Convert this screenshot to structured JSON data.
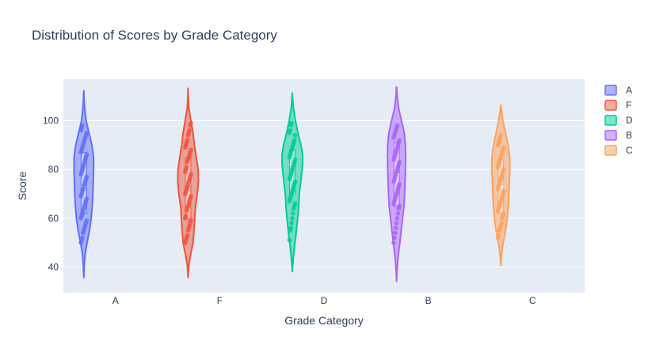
{
  "chart_data": {
    "type": "violin",
    "title": "Distribution of Scores by Grade Category",
    "xlabel": "Grade Category",
    "ylabel": "Score",
    "categories": [
      "A",
      "F",
      "D",
      "B",
      "C"
    ],
    "ylim": [
      29.5,
      117
    ],
    "yticks": [
      40,
      60,
      80,
      100
    ],
    "grid": true,
    "legend_position": "right",
    "series": [
      {
        "name": "A",
        "color": "#636efa",
        "kde": [
          [
            35.5,
            0
          ],
          [
            40,
            0.04
          ],
          [
            45,
            0.12
          ],
          [
            50,
            0.32
          ],
          [
            55,
            0.55
          ],
          [
            60,
            0.72
          ],
          [
            65,
            0.82
          ],
          [
            70,
            0.88
          ],
          [
            75,
            0.92
          ],
          [
            80,
            0.95
          ],
          [
            85,
            0.95
          ],
          [
            90,
            0.78
          ],
          [
            95,
            0.5
          ],
          [
            100,
            0.22
          ],
          [
            105,
            0.09
          ],
          [
            108,
            0.04
          ],
          [
            112.5,
            0
          ]
        ],
        "box": {
          "q1": 62,
          "median": 73,
          "q3": 87
        },
        "points": [
          50,
          51,
          52,
          54,
          55,
          56,
          57,
          58,
          59,
          60,
          61,
          62,
          63,
          64,
          65,
          66,
          67,
          68,
          69,
          70,
          71,
          72,
          73,
          74,
          75,
          76,
          77,
          78,
          79,
          80,
          81,
          82,
          83,
          84,
          85,
          86,
          87,
          88,
          89,
          90,
          91,
          92,
          93,
          94,
          95,
          96,
          97,
          98
        ]
      },
      {
        "name": "F",
        "color": "#ef553b",
        "kde": [
          [
            35.5,
            0
          ],
          [
            38,
            0.03
          ],
          [
            41,
            0.08
          ],
          [
            45,
            0.25
          ],
          [
            50,
            0.48
          ],
          [
            55,
            0.58
          ],
          [
            60,
            0.65
          ],
          [
            65,
            0.72
          ],
          [
            70,
            0.9
          ],
          [
            75,
            1.0
          ],
          [
            80,
            0.98
          ],
          [
            85,
            0.8
          ],
          [
            90,
            0.62
          ],
          [
            95,
            0.48
          ],
          [
            100,
            0.28
          ],
          [
            105,
            0.08
          ],
          [
            110,
            0.02
          ],
          [
            113.5,
            0
          ]
        ],
        "box": {
          "q1": 60,
          "median": 74,
          "q3": 85
        },
        "points": [
          50,
          51,
          52,
          53,
          55,
          56,
          57,
          58,
          59,
          60,
          61,
          63,
          64,
          65,
          66,
          67,
          68,
          69,
          70,
          71,
          72,
          73,
          74,
          75,
          76,
          77,
          78,
          79,
          80,
          81,
          83,
          84,
          85,
          86,
          87,
          88,
          89,
          90,
          91,
          92,
          94,
          95,
          96,
          98,
          99
        ]
      },
      {
        "name": "D",
        "color": "#00cc96",
        "kde": [
          [
            38,
            0
          ],
          [
            40,
            0.03
          ],
          [
            44,
            0.1
          ],
          [
            48,
            0.2
          ],
          [
            52,
            0.32
          ],
          [
            56,
            0.42
          ],
          [
            60,
            0.52
          ],
          [
            64,
            0.6
          ],
          [
            70,
            0.68
          ],
          [
            76,
            0.85
          ],
          [
            82,
            1.0
          ],
          [
            86,
            1.0
          ],
          [
            90,
            0.85
          ],
          [
            94,
            0.6
          ],
          [
            100,
            0.3
          ],
          [
            106,
            0.08
          ],
          [
            111.5,
            0
          ]
        ],
        "box": {
          "q1": 70,
          "median": 82,
          "q3": 88
        },
        "points": [
          51,
          55,
          56,
          58,
          60,
          62,
          64,
          65,
          66,
          67,
          68,
          69,
          70,
          71,
          72,
          73,
          74,
          75,
          76,
          77,
          78,
          79,
          80,
          81,
          82,
          83,
          84,
          85,
          86,
          87,
          88,
          89,
          90,
          91,
          92,
          94,
          95,
          96,
          98,
          99
        ]
      },
      {
        "name": "B",
        "color": "#ab63fa",
        "kde": [
          [
            34,
            0
          ],
          [
            38,
            0.04
          ],
          [
            42,
            0.1
          ],
          [
            46,
            0.2
          ],
          [
            50,
            0.32
          ],
          [
            55,
            0.45
          ],
          [
            60,
            0.58
          ],
          [
            65,
            0.72
          ],
          [
            70,
            0.78
          ],
          [
            75,
            0.82
          ],
          [
            80,
            0.86
          ],
          [
            85,
            0.88
          ],
          [
            90,
            0.86
          ],
          [
            95,
            0.75
          ],
          [
            100,
            0.48
          ],
          [
            105,
            0.2
          ],
          [
            110,
            0.06
          ],
          [
            114,
            0
          ]
        ],
        "box": {
          "q1": 65,
          "median": 78,
          "q3": 91
        },
        "points": [
          50,
          52,
          54,
          56,
          58,
          60,
          62,
          64,
          65,
          66,
          67,
          68,
          69,
          70,
          71,
          72,
          73,
          74,
          75,
          76,
          77,
          78,
          79,
          80,
          81,
          82,
          83,
          84,
          85,
          86,
          87,
          88,
          89,
          90,
          91,
          92,
          93,
          94,
          95,
          96,
          97,
          98
        ]
      },
      {
        "name": "C",
        "color": "#ffa15a",
        "kde": [
          [
            40.5,
            0
          ],
          [
            44,
            0.05
          ],
          [
            48,
            0.15
          ],
          [
            52,
            0.32
          ],
          [
            56,
            0.5
          ],
          [
            60,
            0.62
          ],
          [
            65,
            0.72
          ],
          [
            70,
            0.78
          ],
          [
            75,
            0.82
          ],
          [
            80,
            0.88
          ],
          [
            85,
            0.86
          ],
          [
            90,
            0.7
          ],
          [
            95,
            0.45
          ],
          [
            100,
            0.2
          ],
          [
            104,
            0.07
          ],
          [
            106.5,
            0
          ]
        ],
        "box": {
          "q1": 62,
          "median": 73,
          "q3": 84
        },
        "points": [
          52,
          53,
          55,
          56,
          57,
          58,
          60,
          61,
          62,
          63,
          64,
          65,
          66,
          67,
          68,
          69,
          70,
          71,
          72,
          73,
          74,
          75,
          76,
          77,
          78,
          79,
          80,
          81,
          82,
          83,
          84,
          85,
          86,
          87,
          88,
          89,
          90,
          91,
          92,
          93,
          94
        ]
      }
    ]
  }
}
